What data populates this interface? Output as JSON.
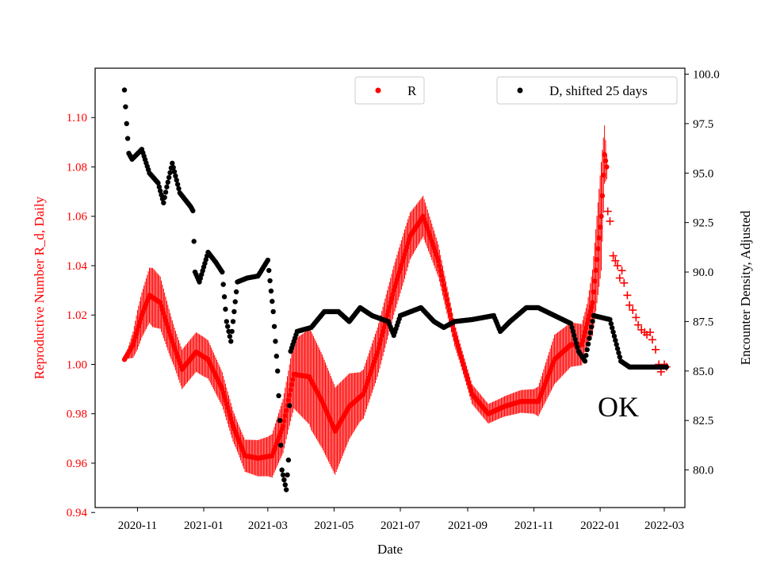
{
  "chart_data": {
    "type": "scatter",
    "title": "",
    "xlabel": "Date",
    "ylabel_left": "Reproductive Number R_d, Daily",
    "ylabel_right": "Encounter Density, Adjusted",
    "annotation": "OK",
    "x_range": [
      "2020-09-23",
      "2022-03-20"
    ],
    "ylim_left": [
      0.942,
      1.12
    ],
    "ylim_right": [
      78.1,
      100.3
    ],
    "x_ticks": [
      {
        "date": "2020-11-01",
        "label": "2020-11"
      },
      {
        "date": "2021-01-01",
        "label": "2021-01"
      },
      {
        "date": "2021-03-01",
        "label": "2021-03"
      },
      {
        "date": "2021-05-01",
        "label": "2021-05"
      },
      {
        "date": "2021-07-01",
        "label": "2021-07"
      },
      {
        "date": "2021-09-01",
        "label": "2021-09"
      },
      {
        "date": "2021-11-01",
        "label": "2021-11"
      },
      {
        "date": "2022-01-01",
        "label": "2022-01"
      },
      {
        "date": "2022-03-01",
        "label": "2022-03"
      }
    ],
    "y_ticks_left": [
      {
        "value": 0.94,
        "label": "0.94"
      },
      {
        "value": 0.96,
        "label": "0.96"
      },
      {
        "value": 0.98,
        "label": "0.98"
      },
      {
        "value": 1.0,
        "label": "1.00"
      },
      {
        "value": 1.02,
        "label": "1.02"
      },
      {
        "value": 1.04,
        "label": "1.04"
      },
      {
        "value": 1.06,
        "label": "1.06"
      },
      {
        "value": 1.08,
        "label": "1.08"
      },
      {
        "value": 1.1,
        "label": "1.10"
      }
    ],
    "y_ticks_right": [
      {
        "value": 80.0,
        "label": "80.0"
      },
      {
        "value": 82.5,
        "label": "82.5"
      },
      {
        "value": 85.0,
        "label": "85.0"
      },
      {
        "value": 87.5,
        "label": "87.5"
      },
      {
        "value": 90.0,
        "label": "90.0"
      },
      {
        "value": 92.5,
        "label": "92.5"
      },
      {
        "value": 95.0,
        "label": "95.0"
      },
      {
        "value": 97.5,
        "label": "97.5"
      },
      {
        "value": 100.0,
        "label": "100.0"
      }
    ],
    "series": [
      {
        "name": "R",
        "axis": "left",
        "color": "#ff0000",
        "marker": "dot",
        "band_color": "#ff0000",
        "center_knots": [
          [
            "2020-10-20",
            1.002
          ],
          [
            "2020-10-28",
            1.008
          ],
          [
            "2020-11-05",
            1.02
          ],
          [
            "2020-11-12",
            1.028
          ],
          [
            "2020-11-22",
            1.025
          ],
          [
            "2020-12-01",
            1.012
          ],
          [
            "2020-12-12",
            0.998
          ],
          [
            "2020-12-25",
            1.005
          ],
          [
            "2021-01-05",
            1.002
          ],
          [
            "2021-01-18",
            0.99
          ],
          [
            "2021-01-28",
            0.975
          ],
          [
            "2021-02-08",
            0.963
          ],
          [
            "2021-02-20",
            0.962
          ],
          [
            "2021-03-05",
            0.963
          ],
          [
            "2021-03-15",
            0.975
          ],
          [
            "2021-03-25",
            0.996
          ],
          [
            "2021-04-08",
            0.995
          ],
          [
            "2021-04-20",
            0.985
          ],
          [
            "2021-05-02",
            0.973
          ],
          [
            "2021-05-15",
            0.983
          ],
          [
            "2021-05-28",
            0.988
          ],
          [
            "2021-06-10",
            1.005
          ],
          [
            "2021-06-25",
            1.03
          ],
          [
            "2021-07-10",
            1.052
          ],
          [
            "2021-07-22",
            1.06
          ],
          [
            "2021-08-05",
            1.042
          ],
          [
            "2021-08-20",
            1.012
          ],
          [
            "2021-09-05",
            0.988
          ],
          [
            "2021-09-20",
            0.98
          ],
          [
            "2021-10-05",
            0.983
          ],
          [
            "2021-10-20",
            0.985
          ],
          [
            "2021-11-05",
            0.985
          ],
          [
            "2021-11-20",
            1.002
          ],
          [
            "2021-12-05",
            1.008
          ],
          [
            "2021-12-15",
            1.008
          ],
          [
            "2021-12-25",
            1.025
          ],
          [
            "2022-01-02",
            1.06
          ],
          [
            "2022-01-05",
            1.085
          ],
          [
            "2022-01-07",
            1.08
          ]
        ],
        "amp_knots": [
          [
            "2020-10-20",
            0.0
          ],
          [
            "2020-11-01",
            0.008
          ],
          [
            "2020-11-15",
            0.012
          ],
          [
            "2020-12-05",
            0.008
          ],
          [
            "2021-01-01",
            0.008
          ],
          [
            "2021-02-01",
            0.006
          ],
          [
            "2021-03-01",
            0.008
          ],
          [
            "2021-03-20",
            0.012
          ],
          [
            "2021-04-10",
            0.02
          ],
          [
            "2021-05-01",
            0.018
          ],
          [
            "2021-05-25",
            0.01
          ],
          [
            "2021-07-05",
            0.01
          ],
          [
            "2021-07-25",
            0.008
          ],
          [
            "2021-08-25",
            0.004
          ],
          [
            "2021-10-01",
            0.004
          ],
          [
            "2021-11-01",
            0.005
          ],
          [
            "2021-11-20",
            0.01
          ],
          [
            "2021-12-20",
            0.008
          ],
          [
            "2022-01-02",
            0.022
          ],
          [
            "2022-01-07",
            0.005
          ]
        ],
        "crosses": [
          [
            "2022-01-08",
            1.062
          ],
          [
            "2022-01-10",
            1.058
          ],
          [
            "2022-01-13",
            1.044
          ],
          [
            "2022-01-15",
            1.042
          ],
          [
            "2022-01-17",
            1.04
          ],
          [
            "2022-01-19",
            1.035
          ],
          [
            "2022-01-21",
            1.038
          ],
          [
            "2022-01-23",
            1.033
          ],
          [
            "2022-01-26",
            1.028
          ],
          [
            "2022-01-28",
            1.024
          ],
          [
            "2022-01-31",
            1.022
          ],
          [
            "2022-02-03",
            1.019
          ],
          [
            "2022-02-05",
            1.016
          ],
          [
            "2022-02-08",
            1.014
          ],
          [
            "2022-02-11",
            1.013
          ],
          [
            "2022-02-13",
            1.012
          ],
          [
            "2022-02-16",
            1.013
          ],
          [
            "2022-02-18",
            1.01
          ],
          [
            "2022-02-21",
            1.006
          ],
          [
            "2022-02-24",
            1.0
          ],
          [
            "2022-02-26",
            0.997
          ],
          [
            "2022-03-01",
            1.0
          ],
          [
            "2022-03-03",
            0.999
          ]
        ]
      },
      {
        "name": "D, shifted 25 days",
        "axis": "right",
        "color": "#000000",
        "marker": "dot",
        "knots": [
          [
            "2020-10-20",
            99.2
          ],
          [
            "2020-10-22",
            97.5
          ],
          [
            "2020-10-24",
            96.0
          ],
          [
            "2020-10-27",
            95.7
          ],
          [
            "2020-11-05",
            96.2
          ],
          [
            "2020-11-12",
            95.0
          ],
          [
            "2020-11-20",
            94.5
          ],
          [
            "2020-11-25",
            93.5
          ],
          [
            "2020-11-28",
            94.3
          ],
          [
            "2020-12-03",
            95.5
          ],
          [
            "2020-12-10",
            94.0
          ],
          [
            "2020-12-20",
            93.3
          ],
          [
            "2020-12-22",
            93.1
          ],
          [
            "2020-12-24",
            90.0
          ],
          [
            "2020-12-28",
            89.5
          ],
          [
            "2021-01-05",
            91.0
          ],
          [
            "2021-01-12",
            90.5
          ],
          [
            "2021-01-18",
            90.0
          ],
          [
            "2021-01-22",
            87.5
          ],
          [
            "2021-01-26",
            86.5
          ],
          [
            "2021-02-01",
            89.5
          ],
          [
            "2021-02-10",
            89.7
          ],
          [
            "2021-02-20",
            89.8
          ],
          [
            "2021-03-01",
            90.6
          ],
          [
            "2021-03-06",
            88.0
          ],
          [
            "2021-03-10",
            85.0
          ],
          [
            "2021-03-14",
            80.0
          ],
          [
            "2021-03-18",
            79.0
          ],
          [
            "2021-03-20",
            80.5
          ],
          [
            "2021-03-22",
            86.0
          ],
          [
            "2021-03-28",
            87.0
          ],
          [
            "2021-04-10",
            87.2
          ],
          [
            "2021-04-22",
            88.0
          ],
          [
            "2021-05-05",
            88.0
          ],
          [
            "2021-05-15",
            87.5
          ],
          [
            "2021-05-25",
            88.2
          ],
          [
            "2021-06-05",
            87.8
          ],
          [
            "2021-06-20",
            87.5
          ],
          [
            "2021-06-25",
            86.8
          ],
          [
            "2021-07-01",
            87.8
          ],
          [
            "2021-07-20",
            88.2
          ],
          [
            "2021-08-01",
            87.5
          ],
          [
            "2021-08-10",
            87.2
          ],
          [
            "2021-08-20",
            87.5
          ],
          [
            "2021-09-05",
            87.6
          ],
          [
            "2021-09-25",
            87.8
          ],
          [
            "2021-10-01",
            87.0
          ],
          [
            "2021-10-10",
            87.5
          ],
          [
            "2021-10-25",
            88.2
          ],
          [
            "2021-11-05",
            88.2
          ],
          [
            "2021-11-20",
            87.8
          ],
          [
            "2021-12-05",
            87.4
          ],
          [
            "2021-12-12",
            86.0
          ],
          [
            "2021-12-18",
            85.5
          ],
          [
            "2021-12-26",
            87.8
          ],
          [
            "2022-01-10",
            87.6
          ],
          [
            "2022-01-20",
            85.5
          ],
          [
            "2022-01-28",
            85.2
          ],
          [
            "2022-02-10",
            85.2
          ],
          [
            "2022-03-03",
            85.2
          ]
        ]
      }
    ],
    "legend": [
      {
        "label": "R",
        "color": "#ff0000",
        "placement": "top-center"
      },
      {
        "label": "D, shifted 25 days",
        "color": "#000000",
        "placement": "top-right"
      }
    ]
  }
}
